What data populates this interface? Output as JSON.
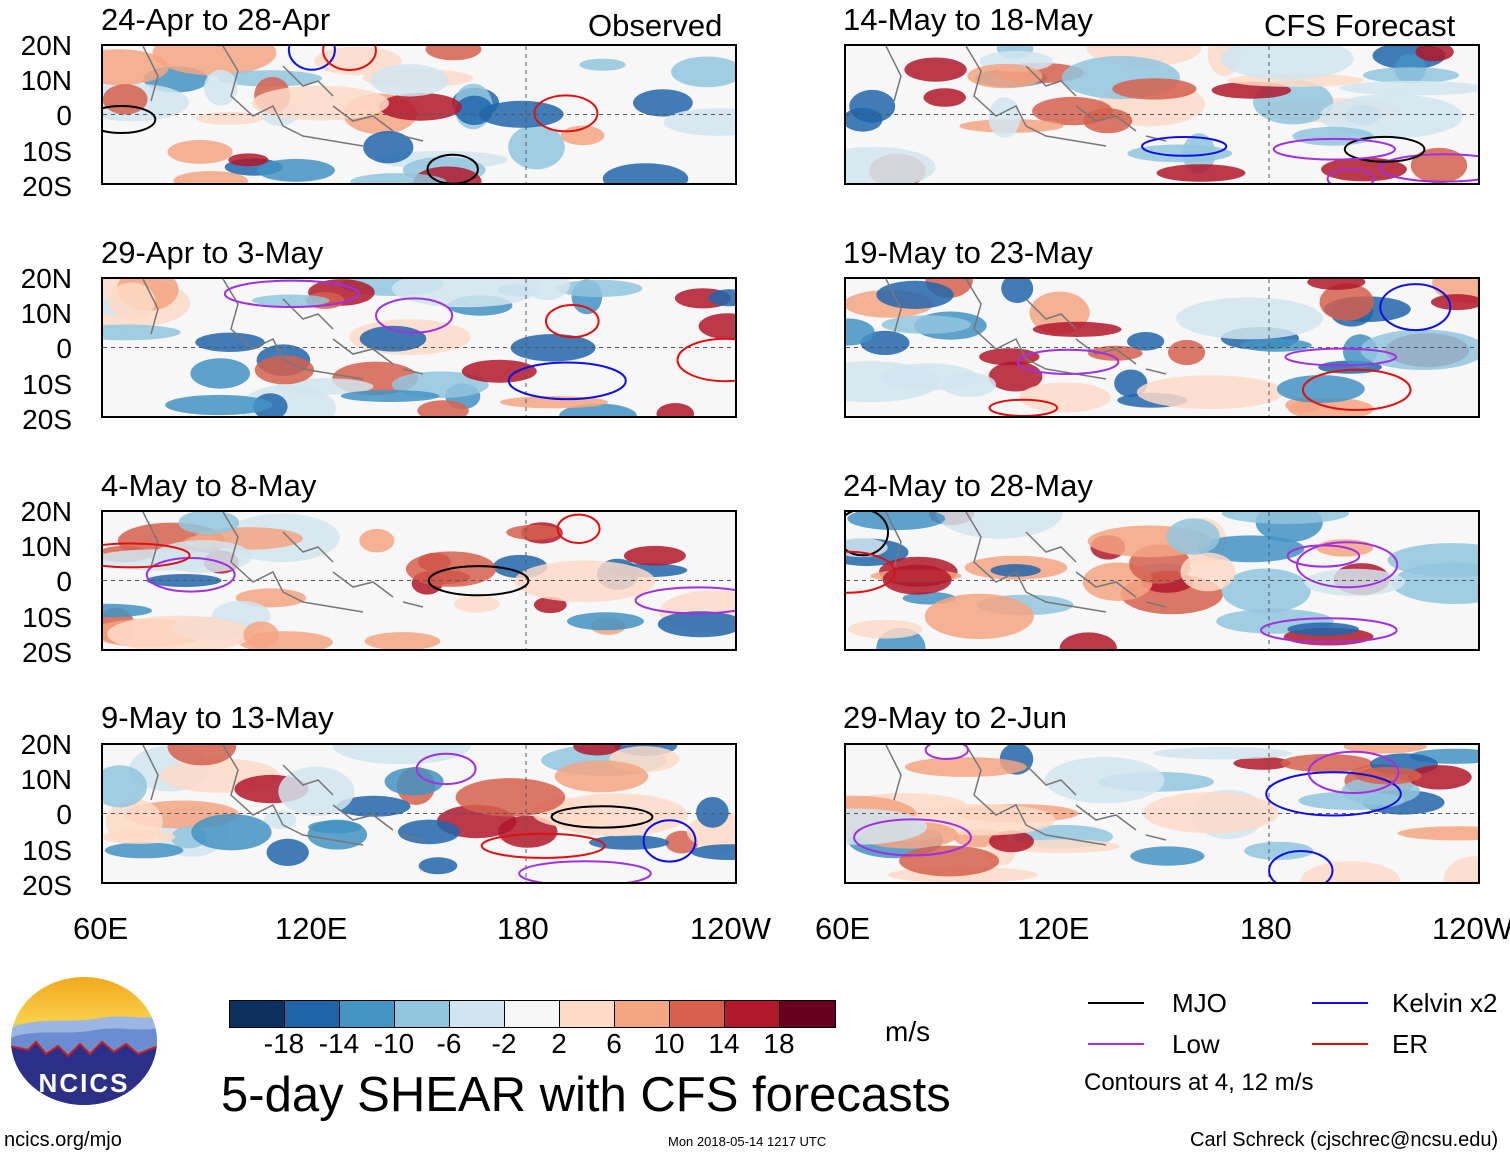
{
  "figure": {
    "main_title": "5-day SHEAR with CFS forecasts",
    "observed_label": "Observed",
    "forecast_label": "CFS Forecast",
    "units": "m/s",
    "contour_note": "Contours at 4, 12 m/s",
    "source_link": "ncics.org/mjo",
    "timestamp": "Mon 2018-05-14 1217 UTC",
    "credit": "Carl Schreck (cjschrec@ncsu.edu)",
    "logo_text": "NCICS"
  },
  "axes": {
    "y_ticks": [
      "20N",
      "10N",
      "0",
      "10S",
      "20S"
    ],
    "x_ticks": [
      "60E",
      "120E",
      "180",
      "120W"
    ]
  },
  "panels": {
    "observed": [
      {
        "title": "24-Apr to 28-Apr"
      },
      {
        "title": "29-Apr to 3-May"
      },
      {
        "title": "4-May to 8-May"
      },
      {
        "title": "9-May to 13-May"
      }
    ],
    "forecast": [
      {
        "title": "14-May to 18-May"
      },
      {
        "title": "19-May to 23-May"
      },
      {
        "title": "24-May to 28-May"
      },
      {
        "title": "29-May to 2-Jun"
      }
    ]
  },
  "colorbar": {
    "labels": [
      "-18",
      "-14",
      "-10",
      "-6",
      "-2",
      "2",
      "6",
      "10",
      "14",
      "18"
    ],
    "colors": [
      "#0d2f5e",
      "#1f63a8",
      "#4393c3",
      "#92c5de",
      "#d1e5f0",
      "#f7f7f7",
      "#fddbc7",
      "#f4a582",
      "#d6604d",
      "#b2182b",
      "#67001f"
    ]
  },
  "legend": {
    "items": [
      {
        "label": "MJO",
        "color": "#000000"
      },
      {
        "label": "Kelvin x2",
        "color": "#1010e0"
      },
      {
        "label": "Low",
        "color": "#a030e0"
      },
      {
        "label": "ER",
        "color": "#e01010"
      }
    ]
  }
}
